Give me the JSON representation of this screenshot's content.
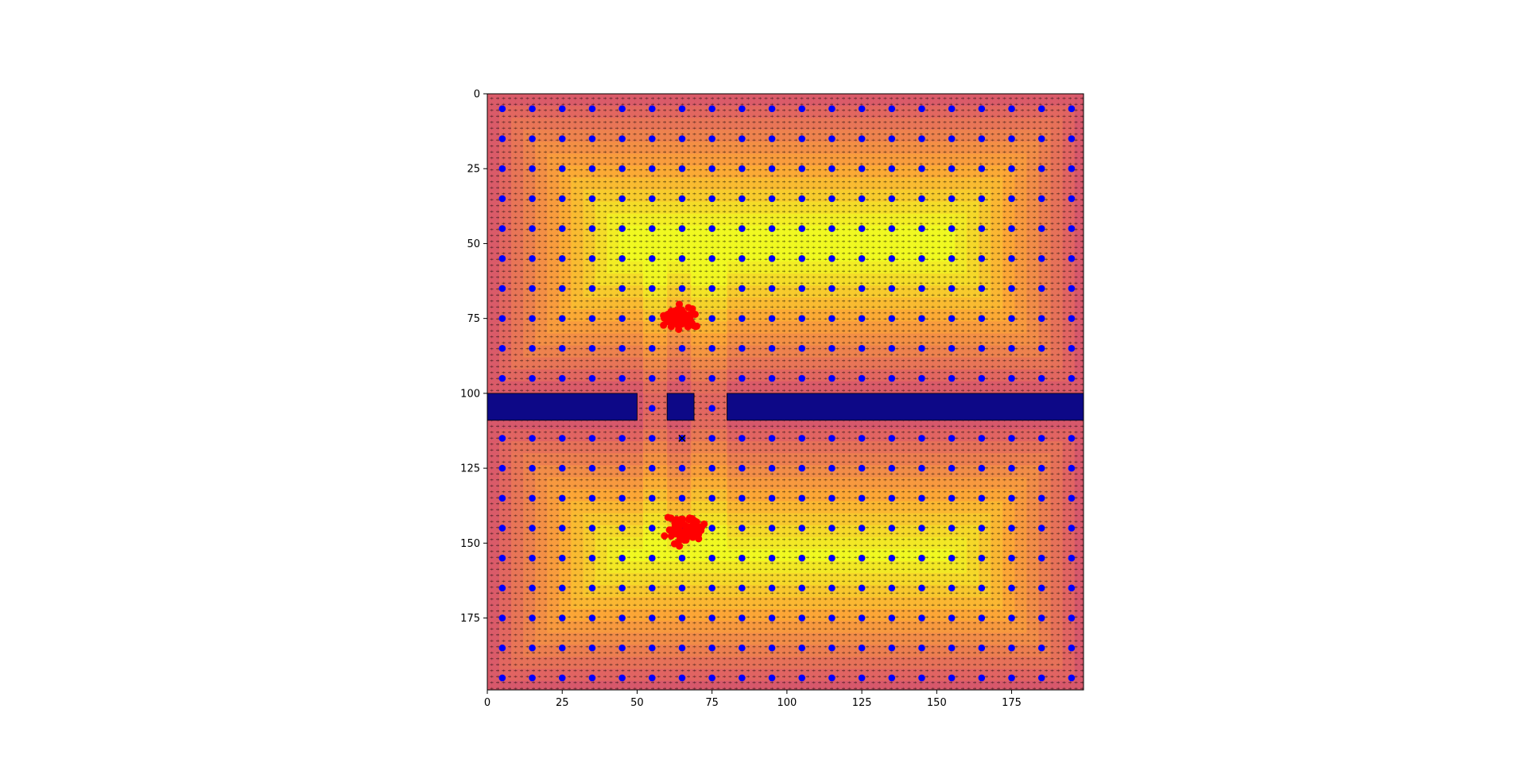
{
  "chart_data": {
    "type": "heatmap",
    "title": "",
    "xlabel": "",
    "ylabel": "",
    "xlim": [
      0,
      199
    ],
    "ylim": [
      199,
      0
    ],
    "y_axis_inverted": true,
    "grid": false,
    "legend": "none",
    "x_ticks": [
      "0",
      "25",
      "50",
      "75",
      "100",
      "125",
      "150",
      "175"
    ],
    "y_ticks": [
      "0",
      "25",
      "50",
      "75",
      "100",
      "125",
      "150",
      "175"
    ],
    "x_tick_values": [
      0,
      25,
      50,
      75,
      100,
      125,
      150,
      175
    ],
    "y_tick_values": [
      0,
      25,
      50,
      75,
      100,
      125,
      150,
      175
    ],
    "colormap": "plasma",
    "colormap_stops": [
      "#0d0887",
      "#6a00a8",
      "#b12a90",
      "#e16462",
      "#fca636",
      "#f0f921"
    ],
    "field_description_values": {
      "free_space_high": "#f0f921",
      "free_space_edge": "#e16462",
      "obstacle": "#0d0887"
    },
    "obstacles": [
      {
        "x": [
          0,
          50
        ],
        "y": [
          100,
          109
        ]
      },
      {
        "x": [
          60,
          69
        ],
        "y": [
          100,
          109
        ]
      },
      {
        "x": [
          80,
          199
        ],
        "y": [
          100,
          109
        ]
      }
    ],
    "grid_points": {
      "color": "#0000ff",
      "x": [
        5,
        15,
        25,
        35,
        45,
        55,
        65,
        75,
        85,
        95,
        105,
        115,
        125,
        135,
        145,
        155,
        165,
        175,
        185,
        195
      ],
      "y": [
        5,
        15,
        25,
        35,
        45,
        55,
        65,
        75,
        85,
        95,
        105,
        115,
        125,
        135,
        145,
        155,
        165,
        175,
        185,
        195
      ],
      "excluded_in_obstacles": true
    },
    "clusters": [
      {
        "color": "#ff0000",
        "center": [
          65,
          75
        ],
        "spread": [
          5,
          3
        ],
        "count": 60
      },
      {
        "color": "#ff0000",
        "center": [
          66,
          145
        ],
        "spread": [
          5,
          4
        ],
        "count": 70
      }
    ],
    "marker": {
      "symbol": "x",
      "x": 65,
      "y": 115,
      "color": "#000000"
    },
    "vector_field": {
      "color": "#000000",
      "spacing": 2
    }
  }
}
